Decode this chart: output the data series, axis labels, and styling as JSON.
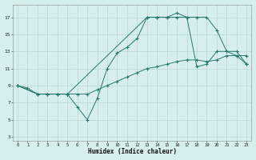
{
  "title": "",
  "xlabel": "Humidex (Indice chaleur)",
  "ylabel": "",
  "xlim": [
    -0.5,
    23.5
  ],
  "ylim": [
    2.5,
    18.5
  ],
  "xticks": [
    0,
    1,
    2,
    3,
    4,
    5,
    6,
    7,
    8,
    9,
    10,
    11,
    12,
    13,
    14,
    15,
    16,
    17,
    18,
    19,
    20,
    21,
    22,
    23
  ],
  "yticks": [
    3,
    5,
    7,
    9,
    11,
    13,
    15,
    17
  ],
  "bg_color": "#d6eeee",
  "grid_color": "#b8d8d8",
  "line_color": "#267a70",
  "line1_x": [
    0,
    1,
    2,
    3,
    4,
    5,
    6,
    7,
    8,
    9,
    10,
    11,
    12,
    13,
    14,
    15,
    16,
    17,
    18,
    19,
    20,
    21,
    22,
    23
  ],
  "line1_y": [
    9,
    8.7,
    8,
    8,
    8,
    8,
    6.5,
    5,
    7.5,
    11,
    12.8,
    13.5,
    14.5,
    17,
    17,
    17,
    17,
    17,
    11.2,
    11.5,
    13,
    13,
    12.5,
    11.5
  ],
  "line2_x": [
    0,
    2,
    3,
    4,
    5,
    6,
    7,
    8,
    9,
    10,
    11,
    12,
    13,
    14,
    15,
    16,
    17,
    18,
    19,
    20,
    21,
    22,
    23
  ],
  "line2_y": [
    9,
    8,
    8,
    8,
    8,
    8,
    8,
    8.5,
    9,
    9.5,
    10,
    10.5,
    11,
    11.2,
    11.5,
    11.8,
    12,
    12,
    11.8,
    12,
    12.5,
    12.5,
    12.5
  ],
  "line3_x": [
    0,
    2,
    3,
    4,
    5,
    13,
    14,
    15,
    16,
    17,
    18,
    19,
    20,
    21,
    22,
    23
  ],
  "line3_y": [
    9,
    8,
    8,
    8,
    8,
    17,
    17,
    17,
    17.5,
    17,
    17,
    17,
    15.5,
    13,
    13,
    11.5
  ]
}
